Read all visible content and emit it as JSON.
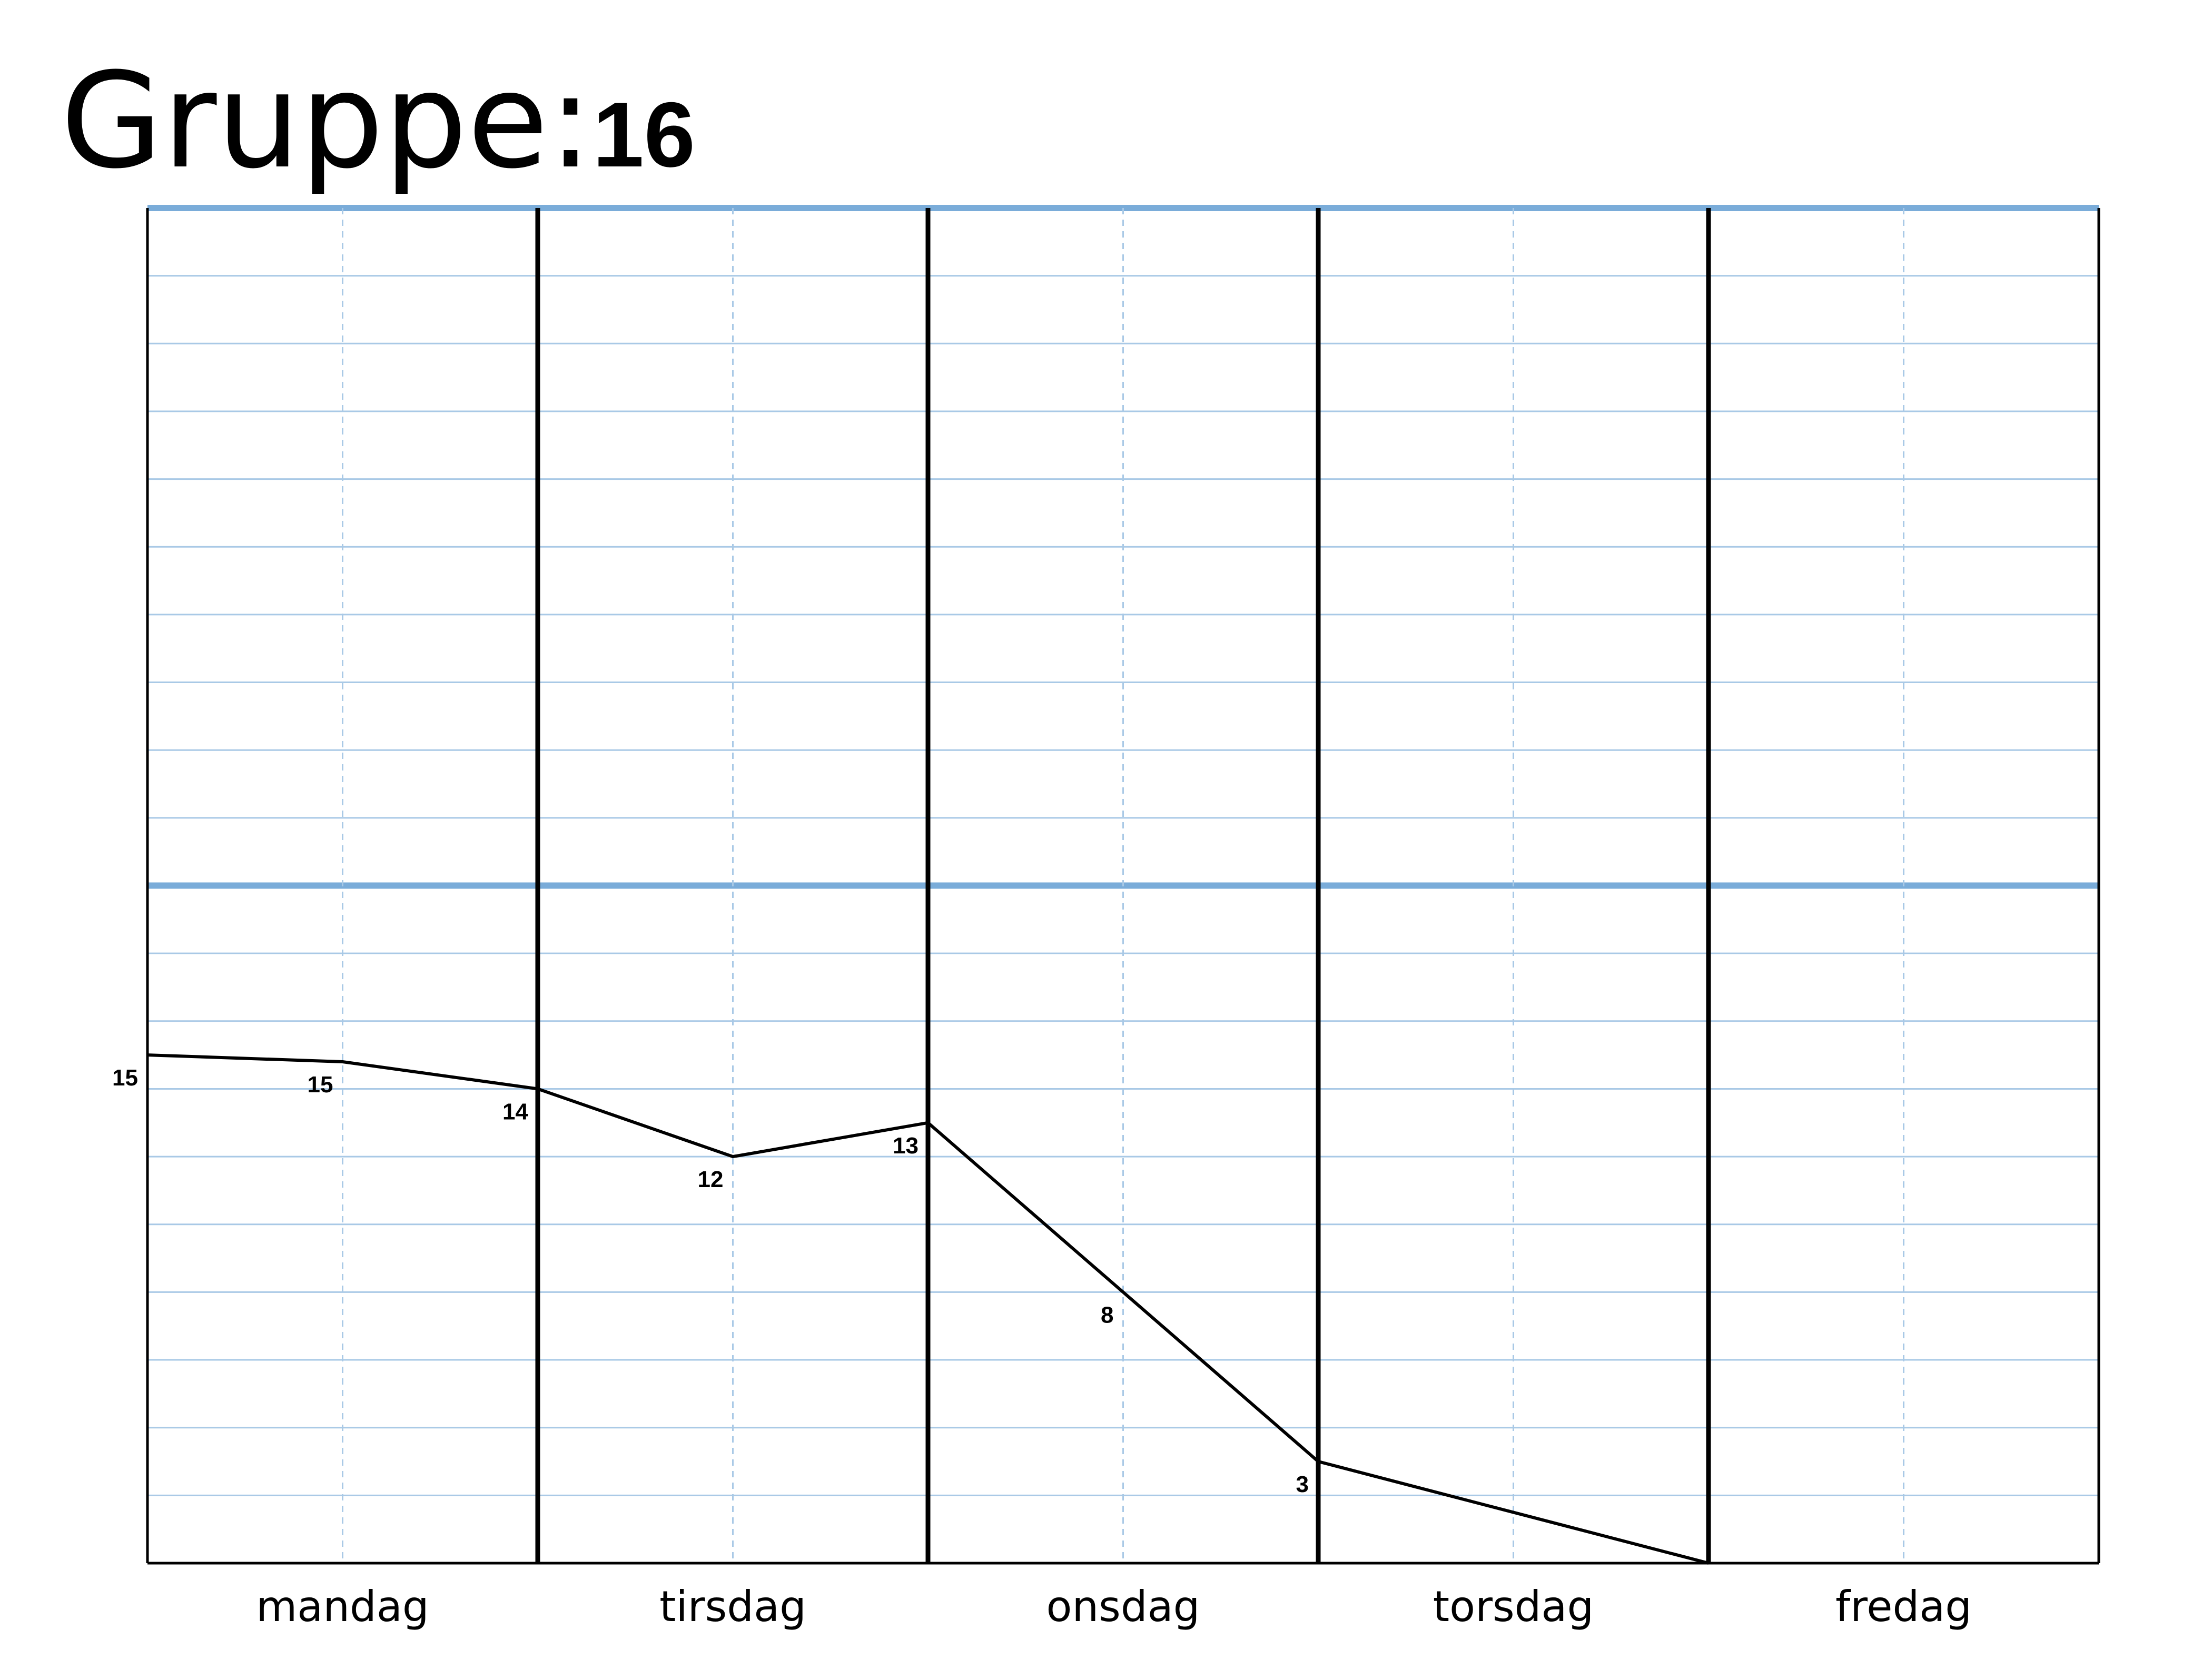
{
  "title": {
    "label": "Gruppe:",
    "value": "16"
  },
  "colors": {
    "grid_major": "#7aacd9",
    "grid_minor": "#a9c9e6",
    "line": "#000000",
    "divider": "#000000"
  },
  "chart_data": {
    "type": "line",
    "title": "Gruppe:16",
    "categories": [
      "mandag",
      "tirsdag",
      "onsdag",
      "torsdag",
      "fredag"
    ],
    "ylim": [
      0,
      40
    ],
    "grid": true,
    "points": [
      {
        "x": 0,
        "y": 15,
        "label": "15"
      },
      {
        "x": 0.5,
        "y": 14.8,
        "label": "15"
      },
      {
        "x": 1,
        "y": 14,
        "label": "14"
      },
      {
        "x": 1.5,
        "y": 12,
        "label": "12"
      },
      {
        "x": 2,
        "y": 13,
        "label": "13"
      },
      {
        "x": 2.5,
        "y": 8,
        "label": "8"
      },
      {
        "x": 3,
        "y": 3,
        "label": "3"
      },
      {
        "x": 4,
        "y": 0,
        "label": ""
      }
    ]
  }
}
